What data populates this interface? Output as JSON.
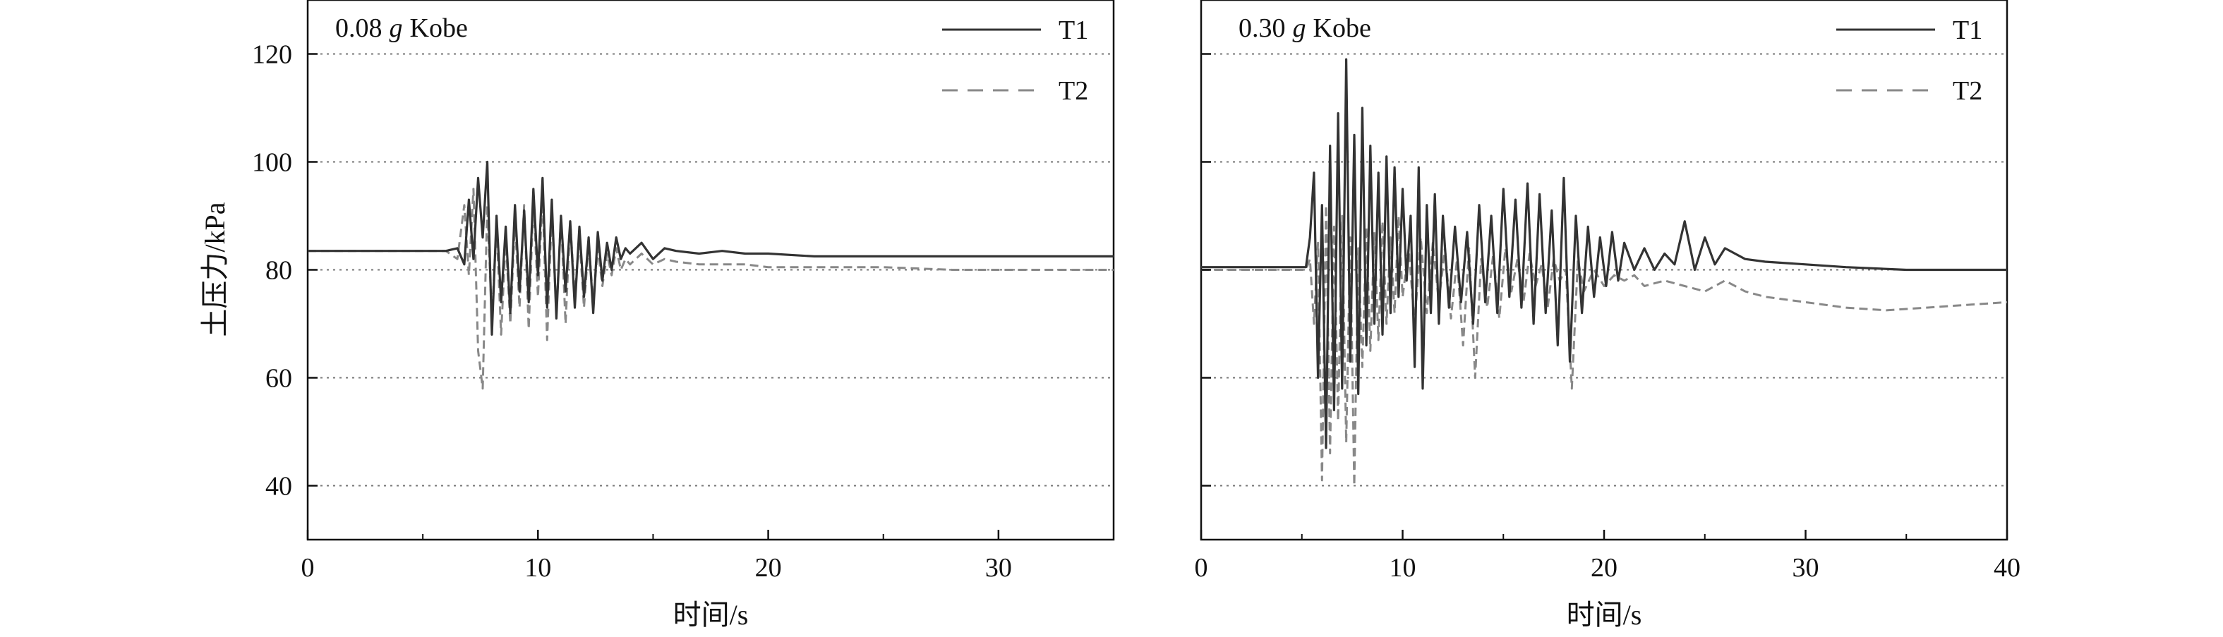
{
  "chart_data": [
    {
      "type": "line",
      "title": "0.08 g Kobe",
      "title_parts": {
        "prefix": "0.08",
        "italic": "g",
        "suffix": "Kobe"
      },
      "xlabel": "时间/s",
      "ylabel": "土压力/kPa",
      "xlim": [
        0,
        35
      ],
      "ylim": [
        30,
        130
      ],
      "xticks": [
        0,
        10,
        20,
        30
      ],
      "yticks": [
        40,
        60,
        80,
        100,
        120
      ],
      "grid": {
        "horizontal": true,
        "style": "dotted"
      },
      "legend": "top-right",
      "series": [
        {
          "name": "T1",
          "style": "solid",
          "color": "#333333",
          "x": [
            0,
            2,
            4,
            6,
            6.5,
            6.8,
            7.0,
            7.2,
            7.4,
            7.6,
            7.8,
            8.0,
            8.2,
            8.4,
            8.6,
            8.8,
            9.0,
            9.2,
            9.4,
            9.6,
            9.8,
            10.0,
            10.2,
            10.4,
            10.6,
            10.8,
            11.0,
            11.2,
            11.4,
            11.6,
            11.8,
            12.0,
            12.2,
            12.4,
            12.6,
            12.8,
            13.0,
            13.2,
            13.4,
            13.6,
            13.8,
            14.0,
            14.5,
            15.0,
            15.5,
            16.0,
            17,
            18,
            19,
            20,
            22,
            25,
            28,
            30,
            32,
            35
          ],
          "y": [
            83.5,
            83.5,
            83.5,
            83.5,
            84,
            81,
            93,
            82,
            97,
            86,
            100,
            68,
            90,
            74,
            88,
            72,
            92,
            76,
            91,
            74,
            95,
            79,
            97,
            73,
            93,
            71,
            90,
            76,
            89,
            73,
            88,
            75,
            86,
            72,
            87,
            78,
            85,
            80,
            86,
            82,
            84,
            83,
            85,
            82,
            84,
            83.5,
            83,
            83.5,
            83,
            83,
            82.5,
            82.5,
            82.5,
            82.5,
            82.5,
            82.5
          ]
        },
        {
          "name": "T2",
          "style": "dashed",
          "color": "#888888",
          "x": [
            0,
            2,
            4,
            6,
            6.5,
            6.8,
            7.0,
            7.2,
            7.4,
            7.6,
            7.8,
            8.0,
            8.2,
            8.4,
            8.6,
            8.8,
            9.0,
            9.2,
            9.4,
            9.6,
            9.8,
            10.0,
            10.2,
            10.4,
            10.6,
            10.8,
            11.0,
            11.2,
            11.4,
            11.6,
            11.8,
            12.0,
            12.2,
            12.4,
            12.6,
            12.8,
            13.0,
            13.2,
            13.4,
            13.6,
            13.8,
            14.0,
            14.5,
            15.0,
            15.5,
            16.0,
            17,
            18,
            19,
            20,
            22,
            25,
            28,
            30,
            32,
            35
          ],
          "y": [
            83.5,
            83.5,
            83.5,
            83.5,
            82,
            92,
            79,
            95,
            65,
            58,
            92,
            71,
            88,
            68,
            86,
            70,
            89,
            73,
            92,
            69,
            93,
            75,
            94,
            67,
            91,
            72,
            90,
            70,
            89,
            75,
            86,
            73,
            85,
            74,
            84,
            77,
            83,
            79,
            84,
            80,
            82,
            81,
            83,
            81,
            82,
            81.5,
            81,
            81,
            81,
            80.5,
            80.5,
            80.5,
            80,
            80,
            80,
            80
          ]
        }
      ]
    },
    {
      "type": "line",
      "title": "0.30 g Kobe",
      "title_parts": {
        "prefix": "0.30",
        "italic": "g",
        "suffix": "Kobe"
      },
      "xlabel": "时间/s",
      "ylabel": "",
      "xlim": [
        0,
        40
      ],
      "ylim": [
        30,
        130
      ],
      "xticks": [
        0,
        10,
        20,
        30,
        40
      ],
      "yticks": [
        40,
        60,
        80,
        100,
        120
      ],
      "grid": {
        "horizontal": true,
        "style": "dotted"
      },
      "legend": "top-right",
      "series": [
        {
          "name": "T1",
          "style": "solid",
          "color": "#333333",
          "x": [
            0,
            3,
            5.2,
            5.4,
            5.6,
            5.8,
            6.0,
            6.2,
            6.4,
            6.6,
            6.8,
            7.0,
            7.2,
            7.4,
            7.6,
            7.8,
            8.0,
            8.2,
            8.4,
            8.6,
            8.8,
            9.0,
            9.2,
            9.4,
            9.6,
            9.8,
            10.0,
            10.2,
            10.4,
            10.6,
            10.8,
            11.0,
            11.2,
            11.4,
            11.6,
            11.8,
            12.0,
            12.3,
            12.6,
            12.9,
            13.2,
            13.5,
            13.8,
            14.1,
            14.4,
            14.7,
            15.0,
            15.3,
            15.6,
            15.9,
            16.2,
            16.5,
            16.8,
            17.1,
            17.4,
            17.7,
            18.0,
            18.3,
            18.6,
            18.9,
            19.2,
            19.5,
            19.8,
            20.1,
            20.4,
            20.7,
            21.0,
            21.5,
            22.0,
            22.5,
            23.0,
            23.5,
            24.0,
            24.5,
            25.0,
            25.5,
            26.0,
            27,
            28,
            30,
            32,
            35,
            38,
            40
          ],
          "y": [
            80.5,
            80.5,
            80.5,
            86,
            98,
            60,
            92,
            47,
            103,
            54,
            109,
            58,
            119,
            63,
            105,
            57,
            110,
            66,
            103,
            70,
            98,
            68,
            101,
            72,
            99,
            75,
            95,
            78,
            90,
            62,
            99,
            58,
            92,
            72,
            94,
            70,
            90,
            73,
            88,
            74,
            87,
            70,
            92,
            74,
            90,
            72,
            95,
            75,
            93,
            73,
            96,
            70,
            94,
            72,
            91,
            66,
            97,
            63,
            90,
            72,
            88,
            75,
            86,
            77,
            87,
            78,
            85,
            80,
            84,
            80,
            83,
            81,
            89,
            80,
            86,
            81,
            84,
            82,
            81.5,
            81,
            80.5,
            80,
            80,
            80
          ]
        },
        {
          "name": "T2",
          "style": "dashed",
          "color": "#888888",
          "x": [
            0,
            3,
            5.2,
            5.4,
            5.6,
            5.8,
            6.0,
            6.2,
            6.4,
            6.6,
            6.8,
            7.0,
            7.2,
            7.4,
            7.6,
            7.8,
            8.0,
            8.2,
            8.4,
            8.6,
            8.8,
            9.0,
            9.2,
            9.4,
            9.6,
            9.8,
            10.0,
            10.3,
            10.6,
            10.9,
            11.2,
            11.5,
            11.8,
            12.1,
            12.4,
            12.7,
            13.0,
            13.3,
            13.6,
            13.9,
            14.2,
            14.5,
            14.8,
            15.1,
            15.4,
            15.7,
            16.0,
            16.3,
            16.6,
            16.9,
            17.2,
            17.5,
            17.8,
            18.1,
            18.4,
            18.7,
            19.0,
            19.5,
            20.0,
            20.5,
            21.0,
            21.5,
            22.0,
            23.0,
            24.0,
            25.0,
            26.0,
            27,
            28,
            30,
            32,
            34,
            36,
            38,
            40
          ],
          "y": [
            80,
            80,
            80,
            82,
            70,
            85,
            41,
            92,
            46,
            88,
            52,
            90,
            48,
            86,
            40,
            84,
            62,
            88,
            65,
            87,
            67,
            89,
            70,
            86,
            72,
            90,
            75,
            84,
            70,
            86,
            72,
            85,
            74,
            84,
            71,
            82,
            66,
            84,
            60,
            82,
            73,
            83,
            71,
            84,
            76,
            82,
            74,
            83,
            77,
            81,
            73,
            82,
            78,
            80,
            58,
            82,
            76,
            80,
            77,
            79,
            78,
            79,
            77,
            78,
            77,
            76,
            78,
            76,
            75,
            74,
            73,
            72.5,
            73,
            73.5,
            74
          ]
        }
      ]
    }
  ]
}
